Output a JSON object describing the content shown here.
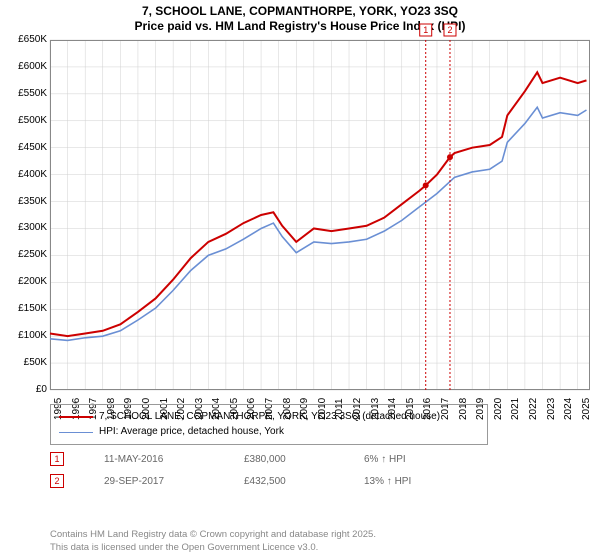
{
  "title_line1": "7, SCHOOL LANE, COPMANTHORPE, YORK, YO23 3SQ",
  "title_line2": "Price paid vs. HM Land Registry's House Price Index (HPI)",
  "chart": {
    "type": "line",
    "x_years": [
      1995,
      1996,
      1997,
      1998,
      1999,
      2000,
      2001,
      2002,
      2003,
      2004,
      2005,
      2006,
      2007,
      2008,
      2009,
      2010,
      2011,
      2012,
      2013,
      2014,
      2015,
      2016,
      2017,
      2018,
      2019,
      2020,
      2021,
      2022,
      2023,
      2024,
      2025
    ],
    "xlim": [
      1995,
      2025.7
    ],
    "ylim": [
      0,
      650000
    ],
    "ytick_step": 50000,
    "yticks": [
      "£0",
      "£50K",
      "£100K",
      "£150K",
      "£200K",
      "£250K",
      "£300K",
      "£350K",
      "£400K",
      "£450K",
      "£500K",
      "£550K",
      "£600K",
      "£650K"
    ],
    "xtick_step": 1,
    "background_color": "#ffffff",
    "grid_color": "#d0d0d0",
    "series": {
      "price_paid": {
        "label": "7, SCHOOL LANE, COPMANTHORPE, YORK, YO23 3SQ (detached house)",
        "color": "#cc0000",
        "width": 2,
        "points": [
          [
            1995,
            105000
          ],
          [
            1996,
            100000
          ],
          [
            1997,
            105000
          ],
          [
            1998,
            110000
          ],
          [
            1999,
            122000
          ],
          [
            2000,
            145000
          ],
          [
            2001,
            170000
          ],
          [
            2002,
            205000
          ],
          [
            2003,
            245000
          ],
          [
            2004,
            275000
          ],
          [
            2005,
            290000
          ],
          [
            2006,
            310000
          ],
          [
            2007,
            325000
          ],
          [
            2007.7,
            330000
          ],
          [
            2008.2,
            305000
          ],
          [
            2009,
            275000
          ],
          [
            2010,
            300000
          ],
          [
            2011,
            295000
          ],
          [
            2012,
            300000
          ],
          [
            2013,
            305000
          ],
          [
            2014,
            320000
          ],
          [
            2015,
            345000
          ],
          [
            2016,
            370000
          ],
          [
            2016.36,
            380000
          ],
          [
            2017,
            400000
          ],
          [
            2017.74,
            432500
          ],
          [
            2018,
            440000
          ],
          [
            2019,
            450000
          ],
          [
            2020,
            455000
          ],
          [
            2020.7,
            470000
          ],
          [
            2021,
            510000
          ],
          [
            2022,
            555000
          ],
          [
            2022.7,
            590000
          ],
          [
            2023,
            570000
          ],
          [
            2024,
            580000
          ],
          [
            2025,
            570000
          ],
          [
            2025.5,
            575000
          ]
        ]
      },
      "hpi": {
        "label": "HPI: Average price, detached house, York",
        "color": "#6a8fd4",
        "width": 1.6,
        "points": [
          [
            1995,
            95000
          ],
          [
            1996,
            92000
          ],
          [
            1997,
            97000
          ],
          [
            1998,
            100000
          ],
          [
            1999,
            110000
          ],
          [
            2000,
            130000
          ],
          [
            2001,
            152000
          ],
          [
            2002,
            185000
          ],
          [
            2003,
            222000
          ],
          [
            2004,
            250000
          ],
          [
            2005,
            262000
          ],
          [
            2006,
            280000
          ],
          [
            2007,
            300000
          ],
          [
            2007.7,
            310000
          ],
          [
            2008.2,
            285000
          ],
          [
            2009,
            255000
          ],
          [
            2010,
            275000
          ],
          [
            2011,
            272000
          ],
          [
            2012,
            275000
          ],
          [
            2013,
            280000
          ],
          [
            2014,
            295000
          ],
          [
            2015,
            315000
          ],
          [
            2016,
            340000
          ],
          [
            2017,
            365000
          ],
          [
            2018,
            395000
          ],
          [
            2019,
            405000
          ],
          [
            2020,
            410000
          ],
          [
            2020.7,
            425000
          ],
          [
            2021,
            460000
          ],
          [
            2022,
            495000
          ],
          [
            2022.7,
            525000
          ],
          [
            2023,
            505000
          ],
          [
            2024,
            515000
          ],
          [
            2025,
            510000
          ],
          [
            2025.5,
            520000
          ]
        ]
      }
    },
    "markers": [
      {
        "num": "1",
        "x": 2016.36,
        "y": 380000,
        "color": "#cc0000"
      },
      {
        "num": "2",
        "x": 2017.74,
        "y": 432500,
        "color": "#cc0000"
      }
    ]
  },
  "legend": {
    "rows": [
      {
        "color": "#cc0000",
        "label": "7, SCHOOL LANE, COPMANTHORPE, YORK, YO23 3SQ (detached house)",
        "width": 2
      },
      {
        "color": "#6a8fd4",
        "label": "HPI: Average price, detached house, York",
        "width": 1.6
      }
    ]
  },
  "sales": [
    {
      "num": "1",
      "date": "11-MAY-2016",
      "price": "£380,000",
      "pct": "6% ↑ HPI"
    },
    {
      "num": "2",
      "date": "29-SEP-2017",
      "price": "£432,500",
      "pct": "13% ↑ HPI"
    }
  ],
  "footer_line1": "Contains HM Land Registry data © Crown copyright and database right 2025.",
  "footer_line2": "This data is licensed under the Open Government Licence v3.0."
}
